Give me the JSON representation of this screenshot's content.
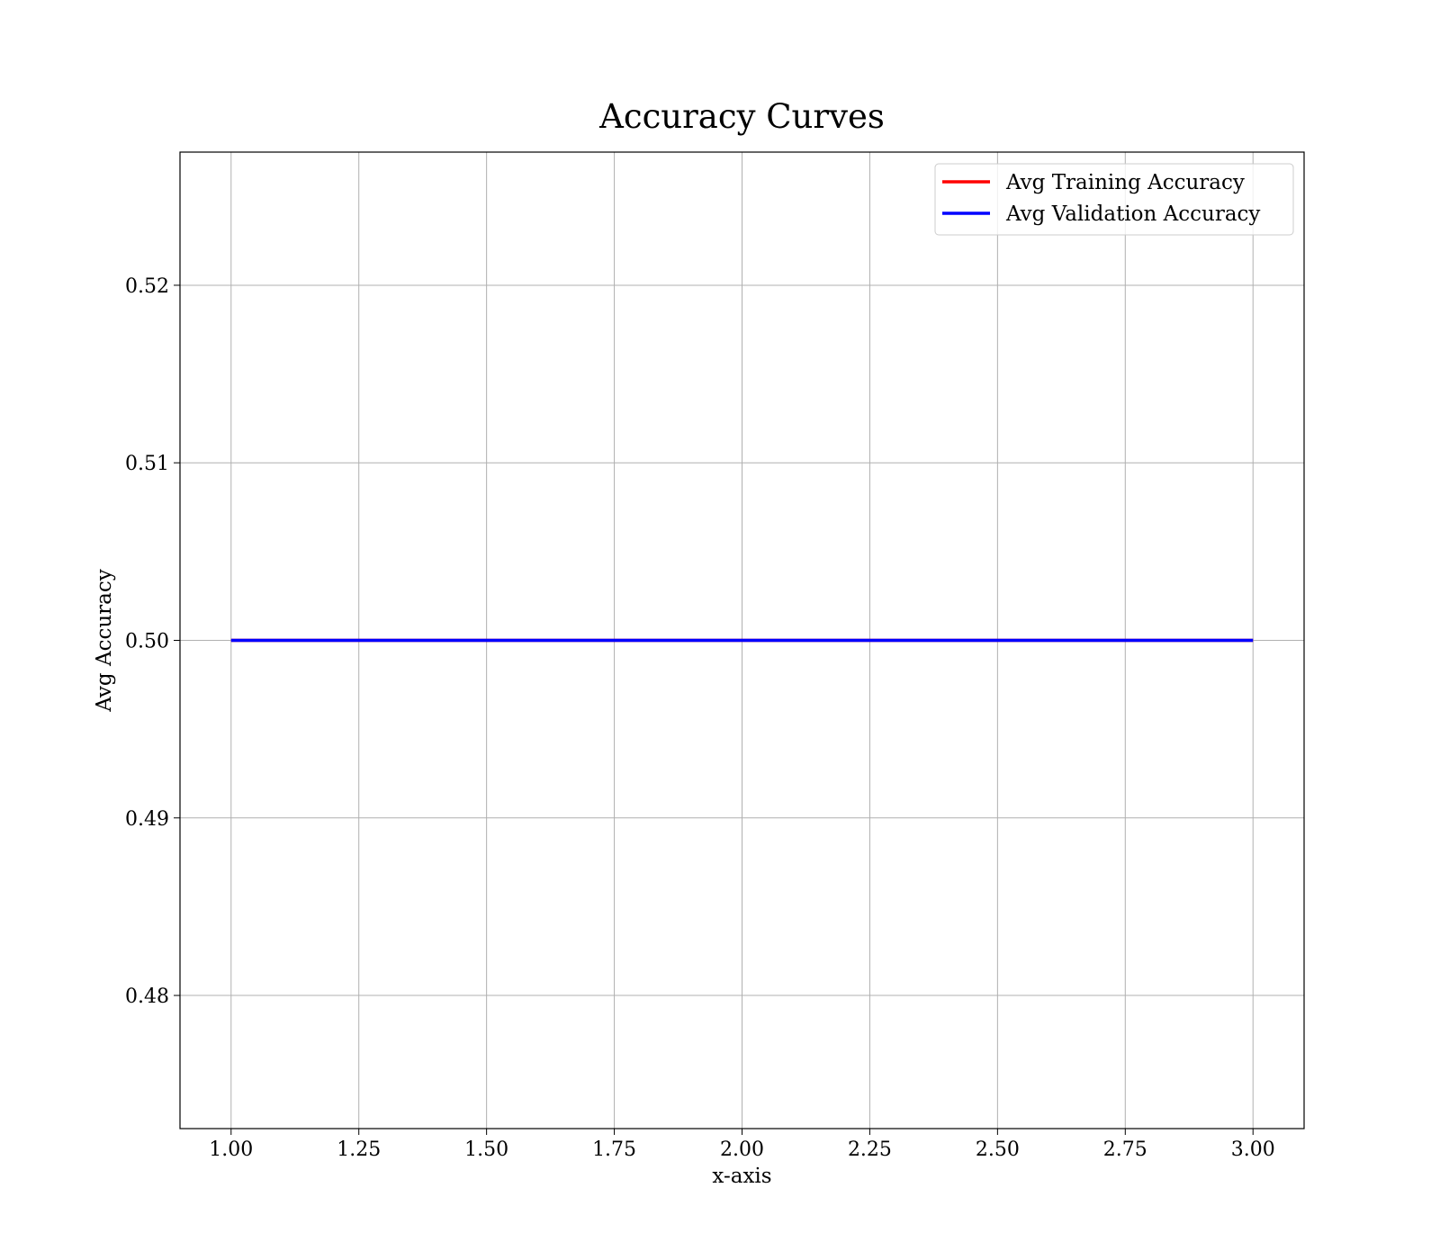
{
  "chart_data": {
    "type": "line",
    "title": "Accuracy Curves",
    "xlabel": "x-axis",
    "ylabel": "Avg Accuracy",
    "xlim": [
      0.9,
      3.1
    ],
    "ylim": [
      0.4725,
      0.5275
    ],
    "xticks": [
      1.0,
      1.25,
      1.5,
      1.75,
      2.0,
      2.25,
      2.5,
      2.75,
      3.0
    ],
    "xtick_labels": [
      "1.00",
      "1.25",
      "1.50",
      "1.75",
      "2.00",
      "2.25",
      "2.50",
      "2.75",
      "3.00"
    ],
    "yticks": [
      0.48,
      0.49,
      0.5,
      0.51,
      0.52
    ],
    "ytick_labels": [
      "0.48",
      "0.49",
      "0.50",
      "0.51",
      "0.52"
    ],
    "grid": true,
    "legend_position": "top-right",
    "x": [
      1,
      2,
      3
    ],
    "series": [
      {
        "name": "Avg Training Accuracy",
        "color": "#ff0000",
        "values": [
          0.5,
          0.5,
          0.5
        ]
      },
      {
        "name": "Avg Validation Accuracy",
        "color": "#0000ff",
        "values": [
          0.5,
          0.5,
          0.5
        ]
      }
    ]
  }
}
